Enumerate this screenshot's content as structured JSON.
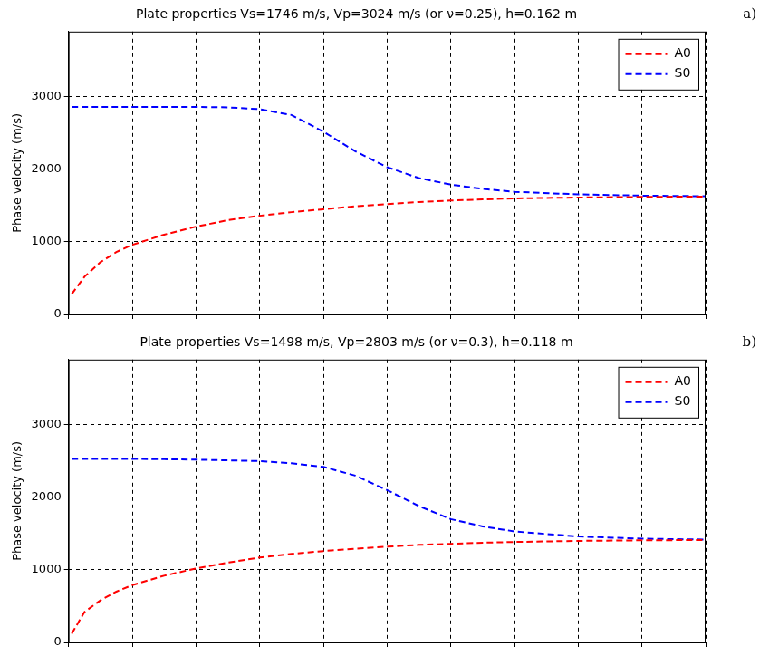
{
  "chart_data": [
    {
      "type": "line",
      "panel": "a)",
      "title": "Plate properties Vs=1746 m/s, Vp=3024 m/s (or ν=0.25), h=0.162 m",
      "y_label": "Phase velocity (m/s)",
      "x": [
        0.05,
        0.25,
        0.5,
        0.75,
        1,
        1.5,
        2,
        2.5,
        3,
        3.5,
        4,
        4.5,
        5,
        5.5,
        6,
        6.5,
        7,
        8,
        9,
        10
      ],
      "series": [
        {
          "name": "A0",
          "color": "#ff0000",
          "line_style": "dashed",
          "values": [
            280,
            520,
            720,
            860,
            960,
            1100,
            1210,
            1300,
            1360,
            1410,
            1450,
            1490,
            1520,
            1550,
            1570,
            1585,
            1600,
            1612,
            1620,
            1625
          ]
        },
        {
          "name": "S0",
          "color": "#0000ff",
          "line_style": "dashed",
          "values": [
            2860,
            2860,
            2860,
            2860,
            2860,
            2860,
            2860,
            2855,
            2830,
            2750,
            2520,
            2250,
            2030,
            1880,
            1790,
            1730,
            1690,
            1655,
            1638,
            1630
          ]
        }
      ],
      "xlim": [
        0,
        10
      ],
      "xticks": [
        0,
        1,
        2,
        3,
        4,
        5,
        6,
        7,
        8,
        9,
        10
      ],
      "ylim": [
        0,
        3900
      ],
      "yticks": [
        0,
        1000,
        2000,
        3000
      ],
      "grid": true,
      "legend": "upper right",
      "tick_labels": "y"
    },
    {
      "type": "line",
      "panel": "b)",
      "title": "Plate properties Vs=1498 m/s, Vp=2803 m/s (or ν=0.3), h=0.118 m",
      "y_label": "Phase velocity (m/s)",
      "x": [
        0.05,
        0.25,
        0.5,
        0.75,
        1,
        1.5,
        2,
        2.5,
        3,
        3.5,
        4,
        4.5,
        5,
        5.5,
        6,
        6.5,
        7,
        8,
        9,
        10
      ],
      "series": [
        {
          "name": "A0",
          "color": "#ff0000",
          "line_style": "dashed",
          "values": [
            120,
            420,
            580,
            700,
            790,
            920,
            1020,
            1100,
            1170,
            1220,
            1260,
            1290,
            1320,
            1345,
            1360,
            1375,
            1385,
            1400,
            1408,
            1412
          ]
        },
        {
          "name": "S0",
          "color": "#0000ff",
          "line_style": "dashed",
          "values": [
            2530,
            2530,
            2530,
            2530,
            2530,
            2525,
            2520,
            2510,
            2500,
            2470,
            2420,
            2300,
            2100,
            1880,
            1700,
            1600,
            1530,
            1460,
            1430,
            1418
          ]
        }
      ],
      "xlim": [
        0,
        10
      ],
      "xticks": [
        0,
        1,
        2,
        3,
        4,
        5,
        6,
        7,
        8,
        9,
        10
      ],
      "ylim": [
        0,
        3900
      ],
      "yticks": [
        0,
        1000,
        2000,
        3000
      ],
      "grid": true,
      "legend": "upper right",
      "tick_labels": "y"
    }
  ]
}
